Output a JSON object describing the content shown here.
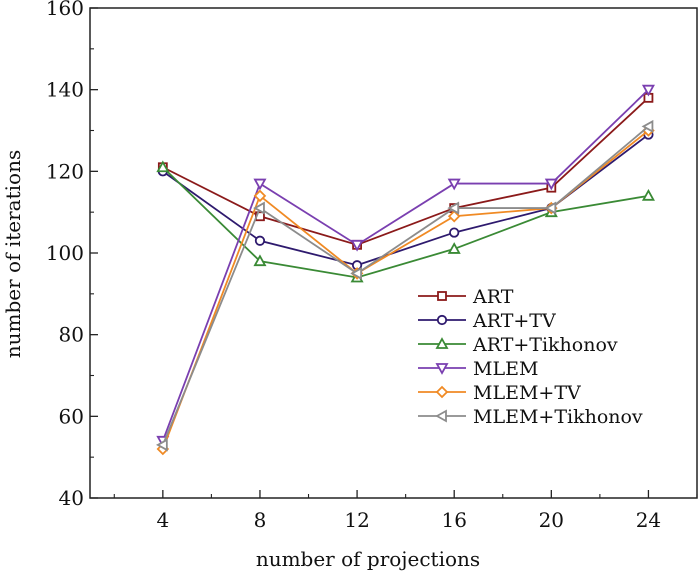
{
  "chart_data": {
    "type": "line",
    "xlabel": "number of projections",
    "ylabel": "number of iterations",
    "x": [
      4,
      8,
      12,
      16,
      20,
      24
    ],
    "x_ticks": [
      4,
      8,
      12,
      16,
      20,
      24
    ],
    "xlim": [
      1,
      26
    ],
    "ylim": [
      40,
      160
    ],
    "y_ticks": [
      40,
      60,
      80,
      100,
      120,
      140,
      160
    ],
    "grid": false,
    "legend_position": "center-right",
    "series": [
      {
        "name": "ART",
        "color": "#8b1a1a",
        "marker": "square",
        "values": [
          121,
          109,
          102,
          111,
          116,
          138
        ]
      },
      {
        "name": "ART+TV",
        "color": "#2e1a6e",
        "marker": "circle",
        "values": [
          120,
          103,
          97,
          105,
          111,
          129
        ]
      },
      {
        "name": "ART+Tikhonov",
        "color": "#3a8a35",
        "marker": "triangle-up",
        "values": [
          121,
          98,
          94,
          101,
          110,
          114
        ]
      },
      {
        "name": "MLEM",
        "color": "#7a3fb0",
        "marker": "triangle-down",
        "values": [
          54,
          117,
          102,
          117,
          117,
          140
        ]
      },
      {
        "name": "MLEM+TV",
        "color": "#f08a24",
        "marker": "diamond",
        "values": [
          52,
          114,
          95,
          109,
          111,
          130
        ]
      },
      {
        "name": "MLEM+Tikhonov",
        "color": "#8c8c8c",
        "marker": "triangle-left",
        "values": [
          53,
          111,
          95,
          111,
          111,
          131
        ]
      }
    ]
  }
}
